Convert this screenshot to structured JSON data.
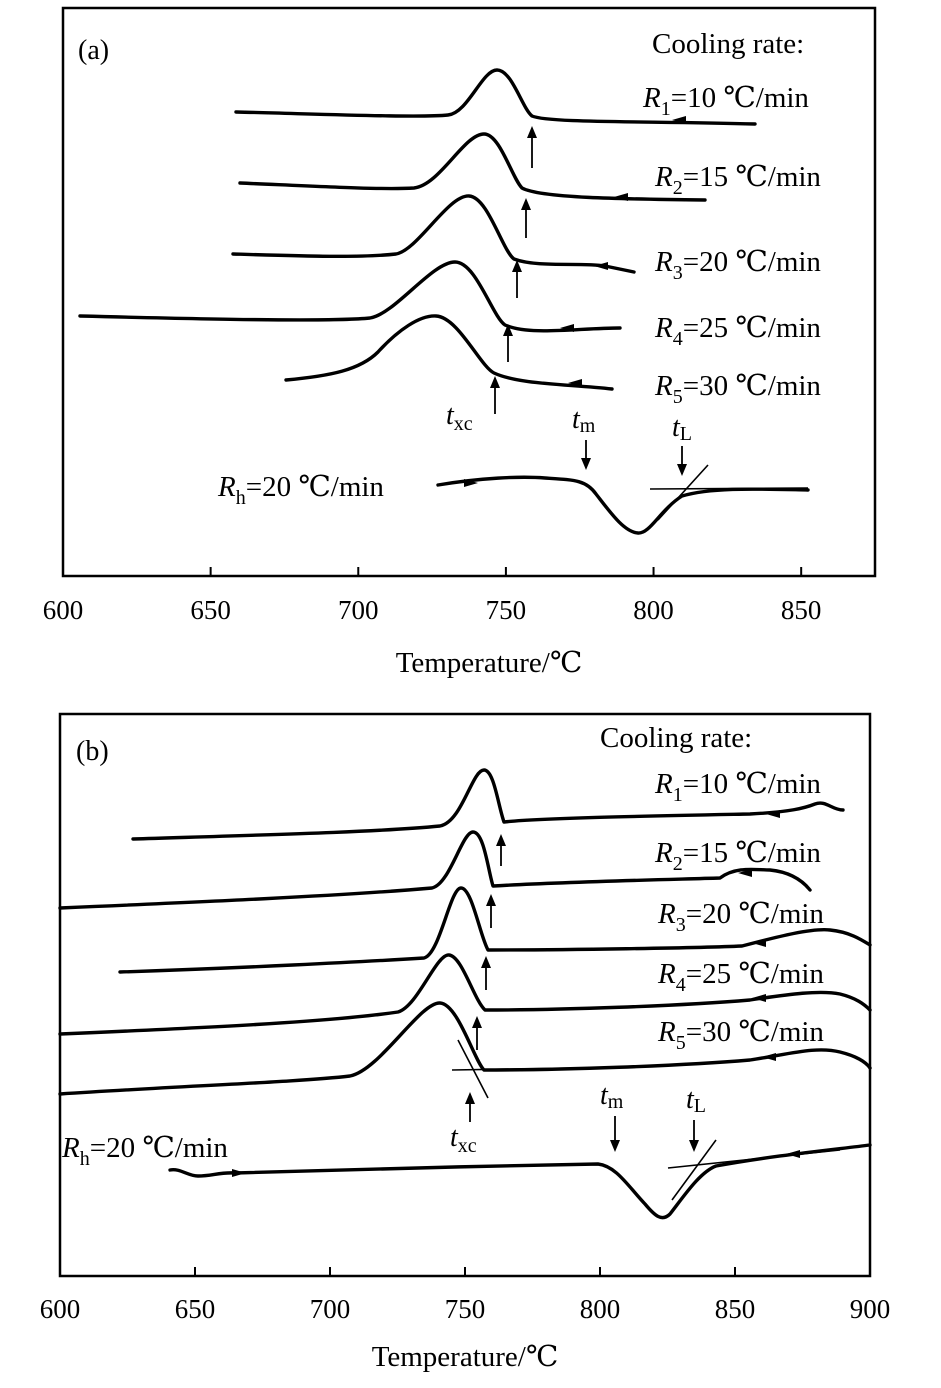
{
  "panels": [
    {
      "label": "(a)",
      "xlabel": "Temperature/℃",
      "xticks": [
        600,
        650,
        700,
        750,
        800,
        850
      ],
      "legend_title": "Cooling rate:",
      "rates": [
        {
          "sym": "R",
          "sub": "1",
          "text": "=10 ℃/min"
        },
        {
          "sym": "R",
          "sub": "2",
          "text": "=15 ℃/min"
        },
        {
          "sym": "R",
          "sub": "3",
          "text": "=20 ℃/min"
        },
        {
          "sym": "R",
          "sub": "4",
          "text": "=25 ℃/min"
        },
        {
          "sym": "R",
          "sub": "5",
          "text": "=30 ℃/min"
        }
      ],
      "heating": {
        "sym": "R",
        "sub": "h",
        "text": "=20 ℃/min"
      },
      "marks": {
        "txc": {
          "sym": "t",
          "sub": "xc"
        },
        "tm": {
          "sym": "t",
          "sub": "m"
        },
        "tL": {
          "sym": "t",
          "sub": "L"
        }
      }
    },
    {
      "label": "(b)",
      "xlabel": "Temperature/℃",
      "xticks": [
        600,
        650,
        700,
        750,
        800,
        850,
        900
      ],
      "legend_title": "Cooling rate:",
      "rates": [
        {
          "sym": "R",
          "sub": "1",
          "text": "=10 ℃/min"
        },
        {
          "sym": "R",
          "sub": "2",
          "text": "=15 ℃/min"
        },
        {
          "sym": "R",
          "sub": "3",
          "text": "=20 ℃/min"
        },
        {
          "sym": "R",
          "sub": "4",
          "text": "=25 ℃/min"
        },
        {
          "sym": "R",
          "sub": "5",
          "text": "=30 ℃/min"
        }
      ],
      "heating": {
        "sym": "R",
        "sub": "h",
        "text": "=20 ℃/min"
      },
      "marks": {
        "txc": {
          "sym": "t",
          "sub": "xc"
        },
        "tm": {
          "sym": "t",
          "sub": "m"
        },
        "tL": {
          "sym": "t",
          "sub": "L"
        }
      }
    }
  ],
  "chart_data": [
    {
      "type": "line",
      "xlabel": "Temperature/℃",
      "xlim": [
        600,
        875
      ],
      "series": [
        {
          "name": "R1=10 ℃/min",
          "x": [
            658,
            700,
            740,
            748,
            758,
            775,
            800,
            835
          ],
          "y": [
            0.86,
            0.84,
            0.9,
            0.96,
            0.84,
            0.82,
            0.82,
            0.81
          ]
        },
        {
          "name": "R2=15 ℃/min",
          "x": [
            660,
            700,
            735,
            743,
            752,
            770,
            800,
            818
          ],
          "y": [
            0.72,
            0.7,
            0.76,
            0.82,
            0.71,
            0.68,
            0.68,
            0.68
          ]
        },
        {
          "name": "R3=20 ℃/min",
          "x": [
            658,
            700,
            730,
            739,
            748,
            770,
            790,
            795
          ],
          "y": [
            0.58,
            0.57,
            0.62,
            0.68,
            0.58,
            0.56,
            0.55,
            0.52
          ]
        },
        {
          "name": "R4=25 ℃/min",
          "x": [
            606,
            680,
            725,
            735,
            745,
            760,
            780,
            788
          ],
          "y": [
            0.46,
            0.45,
            0.5,
            0.56,
            0.45,
            0.42,
            0.42,
            0.42
          ]
        },
        {
          "name": "R5=30 ℃/min",
          "x": [
            676,
            700,
            720,
            729,
            740,
            755,
            775,
            786
          ],
          "y": [
            0.34,
            0.35,
            0.42,
            0.46,
            0.35,
            0.33,
            0.33,
            0.32
          ]
        },
        {
          "name": "Rh=20 ℃/min",
          "x": [
            735,
            760,
            780,
            790,
            796,
            805,
            820,
            853
          ],
          "y": [
            0.17,
            0.18,
            0.17,
            0.11,
            0.08,
            0.13,
            0.16,
            0.16
          ]
        }
      ],
      "markers": {
        "txc": 745,
        "tm": 778,
        "tL": 810
      }
    },
    {
      "type": "line",
      "xlabel": "Temperature/℃",
      "xlim": [
        600,
        900
      ],
      "series": [
        {
          "name": "R1=10 ℃/min",
          "x": [
            627,
            700,
            750,
            758,
            763,
            800,
            865,
            880,
            890
          ],
          "y": [
            0.78,
            0.79,
            0.8,
            0.9,
            0.79,
            0.8,
            0.81,
            0.82,
            0.81
          ]
        },
        {
          "name": "R2=15 ℃/min",
          "x": [
            600,
            700,
            747,
            753,
            760,
            800,
            850,
            870,
            880
          ],
          "y": [
            0.65,
            0.67,
            0.69,
            0.78,
            0.68,
            0.68,
            0.69,
            0.72,
            0.68
          ]
        },
        {
          "name": "R3=20 ℃/min",
          "x": [
            622,
            700,
            742,
            750,
            758,
            800,
            850,
            885,
            900
          ],
          "y": [
            0.55,
            0.56,
            0.58,
            0.68,
            0.56,
            0.56,
            0.57,
            0.61,
            0.57
          ]
        },
        {
          "name": "R4=25 ℃/min",
          "x": [
            600,
            700,
            738,
            745,
            756,
            800,
            850,
            885,
            900
          ],
          "y": [
            0.43,
            0.45,
            0.47,
            0.56,
            0.45,
            0.45,
            0.46,
            0.49,
            0.46
          ]
        },
        {
          "name": "R5=30 ℃/min",
          "x": [
            600,
            700,
            735,
            742,
            753,
            800,
            850,
            885,
            900
          ],
          "y": [
            0.33,
            0.35,
            0.38,
            0.46,
            0.35,
            0.35,
            0.36,
            0.39,
            0.35
          ]
        },
        {
          "name": "Rh=20 ℃/min",
          "x": [
            640,
            650,
            700,
            800,
            813,
            823,
            835,
            850,
            900
          ],
          "y": [
            0.17,
            0.16,
            0.16,
            0.17,
            0.13,
            0.08,
            0.14,
            0.17,
            0.19
          ]
        }
      ],
      "markers": {
        "txc": 756,
        "tm": 806,
        "tL": 834
      }
    }
  ]
}
